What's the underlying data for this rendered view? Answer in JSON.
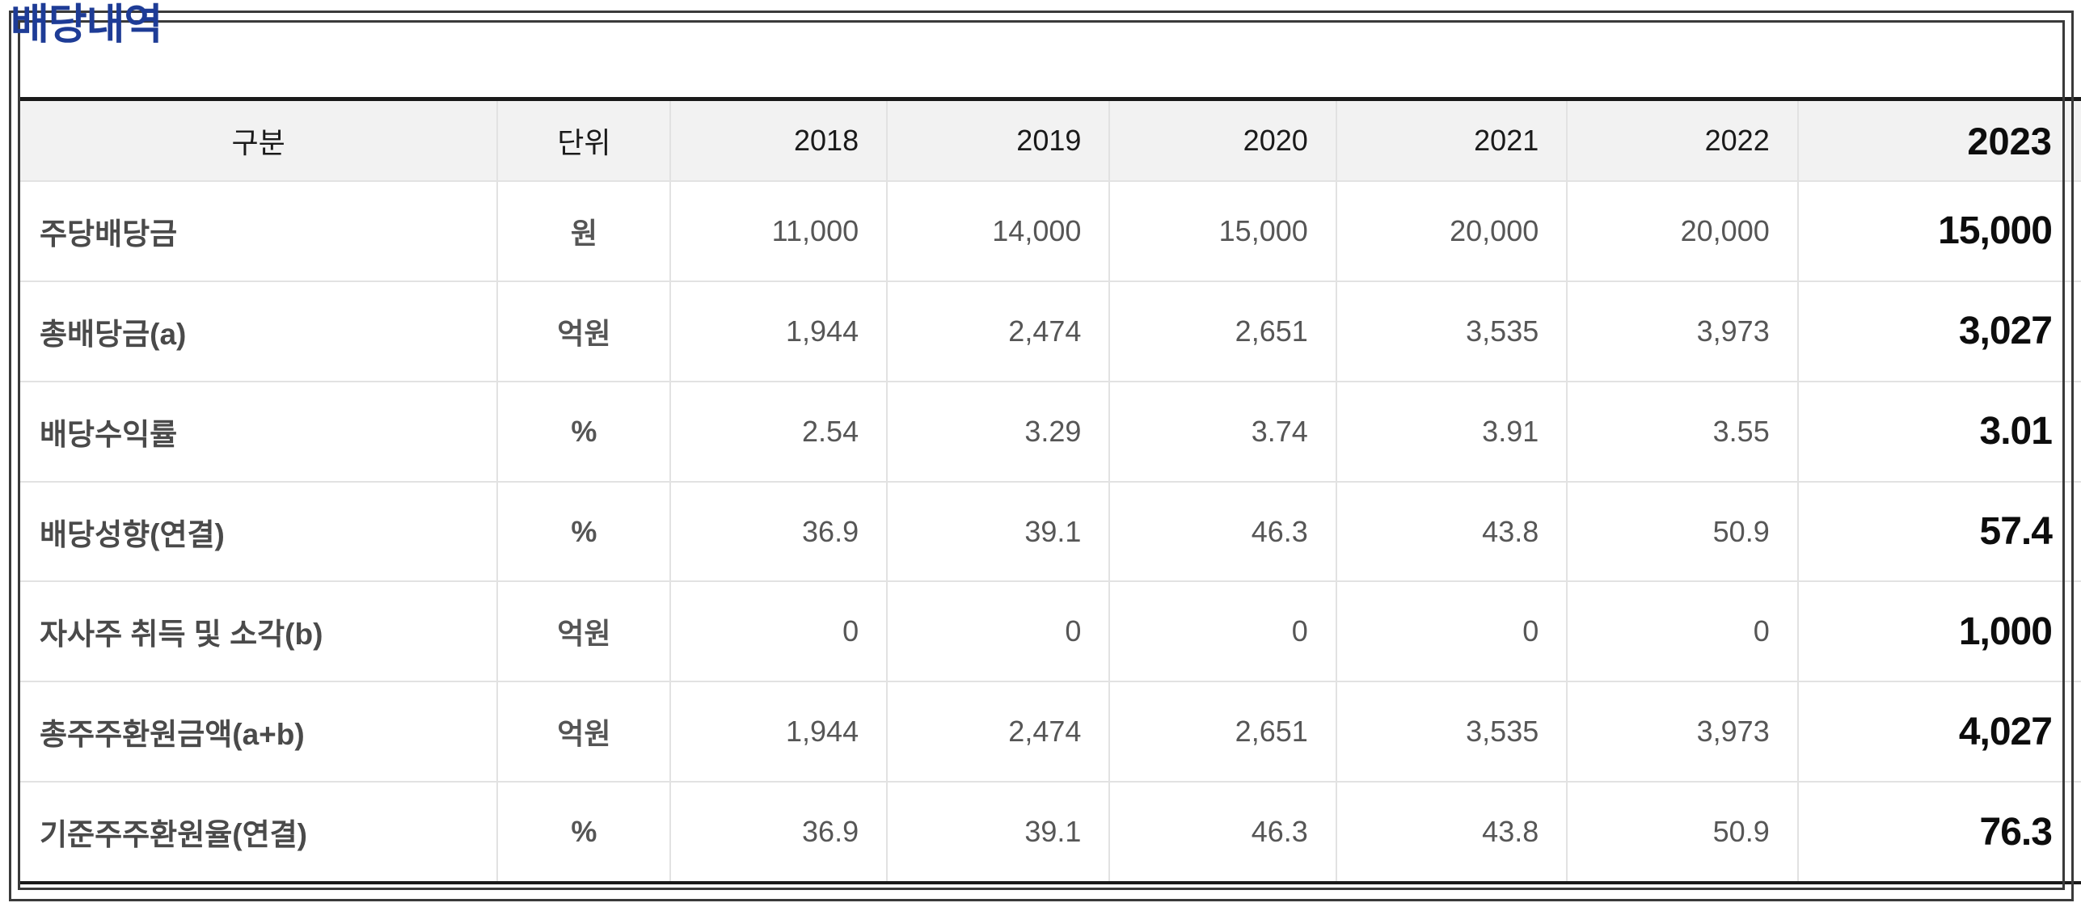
{
  "title": "배당내역",
  "colors": {
    "title_blue": "#1e3c96",
    "header_bg": "#f2f2f2",
    "grid_line": "#e2e2e2",
    "heavy_line": "#1a1a1a",
    "frame_line": "#3a3a3a",
    "value_gray": "#565656",
    "value_strong": "#0d0d0d"
  },
  "table": {
    "columns": [
      "구분",
      "단위",
      "2018",
      "2019",
      "2020",
      "2021",
      "2022",
      "2023"
    ],
    "rows": [
      {
        "cells": [
          "주당배당금",
          "원",
          "11,000",
          "14,000",
          "15,000",
          "20,000",
          "20,000",
          "15,000"
        ]
      },
      {
        "cells": [
          "총배당금(a)",
          "억원",
          "1,944",
          "2,474",
          "2,651",
          "3,535",
          "3,973",
          "3,027"
        ]
      },
      {
        "cells": [
          "배당수익률",
          "%",
          "2.54",
          "3.29",
          "3.74",
          "3.91",
          "3.55",
          "3.01"
        ]
      },
      {
        "cells": [
          "배당성향(연결)",
          "%",
          "36.9",
          "39.1",
          "46.3",
          "43.8",
          "50.9",
          "57.4"
        ]
      },
      {
        "cells": [
          "자사주 취득 및 소각(b)",
          "억원",
          "0",
          "0",
          "0",
          "0",
          "0",
          "1,000"
        ]
      },
      {
        "cells": [
          "총주주환원금액(a+b)",
          "억원",
          "1,944",
          "2,474",
          "2,651",
          "3,535",
          "3,973",
          "4,027"
        ]
      },
      {
        "cells": [
          "기준주주환원율(연결)",
          "%",
          "36.9",
          "39.1",
          "46.3",
          "43.8",
          "50.9",
          "76.3"
        ]
      }
    ]
  }
}
